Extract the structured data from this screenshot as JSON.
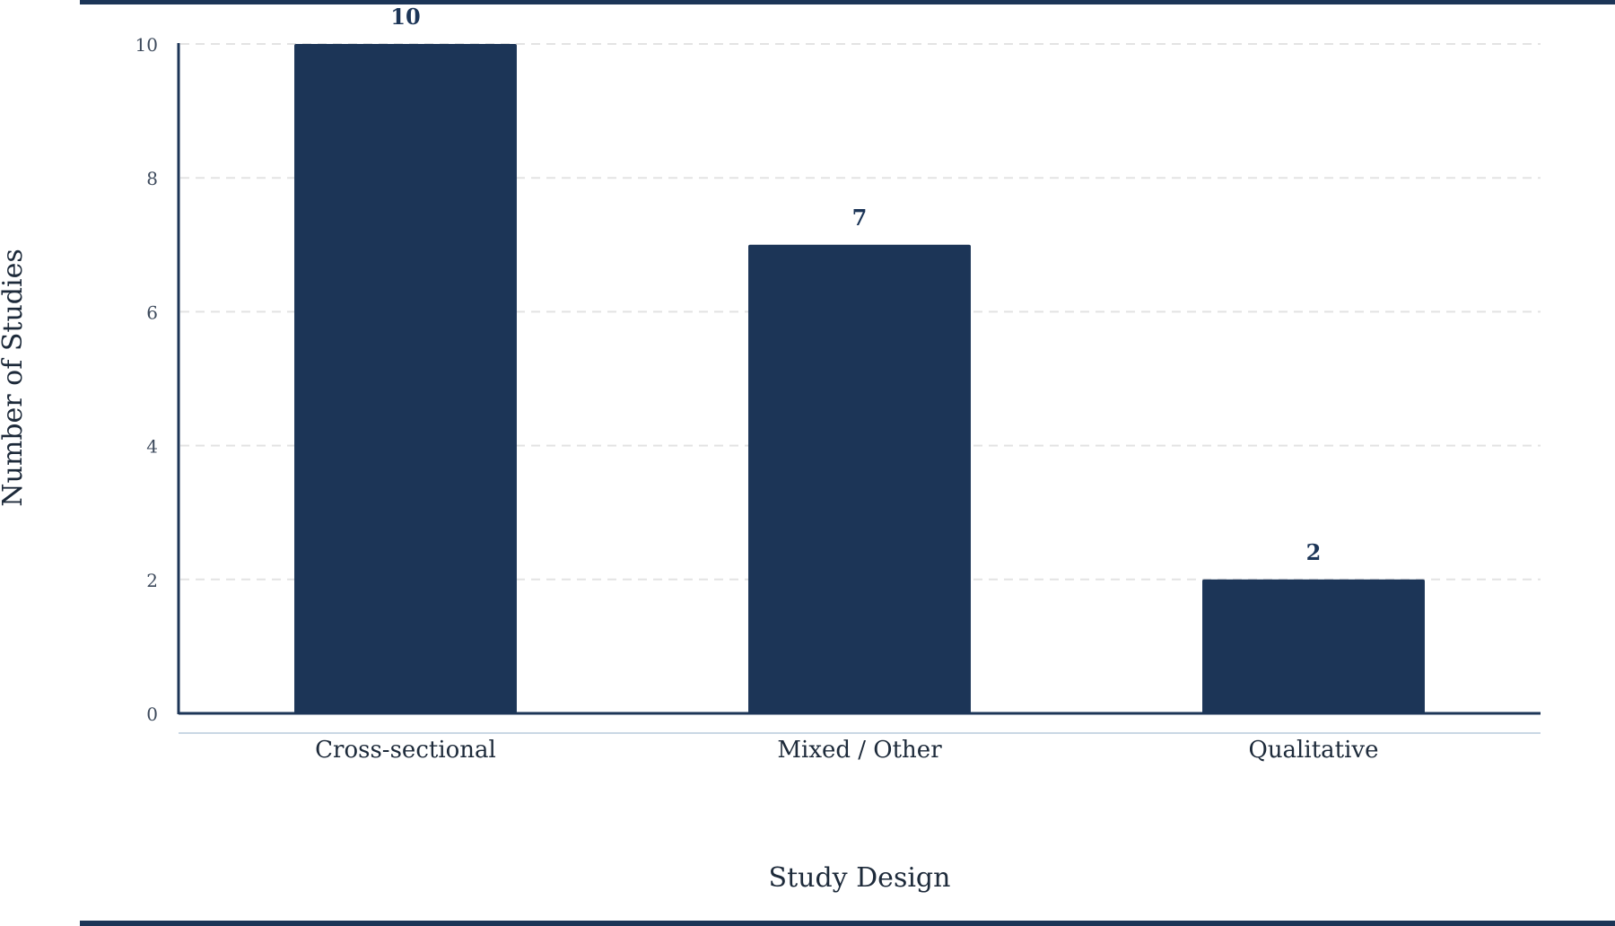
{
  "chart_data": {
    "type": "bar",
    "categories": [
      "Cross-sectional",
      "Mixed / Other",
      "Qualitative"
    ],
    "values": [
      10,
      7,
      2
    ],
    "xlabel": "Study Design",
    "ylabel": "Number of Studies",
    "ylim": [
      0,
      10
    ],
    "yticks": [
      0,
      2,
      4,
      6,
      8,
      10
    ],
    "grid": "horizontal-dashed",
    "legend": "none",
    "colors": {
      "bar": "#1c3557",
      "frame": "#1c3557",
      "grid": "#e3e3e3",
      "baseline_light": "#b9cbdc",
      "text": "#1d2a3a"
    }
  }
}
